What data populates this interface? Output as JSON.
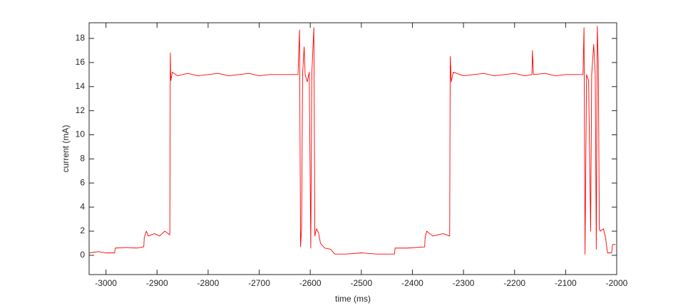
{
  "chart_data": {
    "type": "line",
    "xlabel": "time (ms)",
    "ylabel": "current (mA)",
    "color": "#ff0000",
    "xlim": [
      -3033,
      -2000
    ],
    "ylim": [
      -1.6,
      19.3
    ],
    "xticks": [
      -3000,
      -2900,
      -2800,
      -2700,
      -2600,
      -2500,
      -2400,
      -2300,
      -2200,
      -2100,
      -2000
    ],
    "yticks": [
      0,
      2,
      4,
      6,
      8,
      10,
      12,
      14,
      16,
      18
    ],
    "grid": false,
    "x": [
      -3033,
      -3015,
      -3000,
      -2983,
      -2982,
      -2960,
      -2940,
      -2926,
      -2925,
      -2921,
      -2917,
      -2905,
      -2895,
      -2885,
      -2875,
      -2874,
      -2873,
      -2870,
      -2860,
      -2840,
      -2820,
      -2800,
      -2780,
      -2760,
      -2740,
      -2720,
      -2700,
      -2680,
      -2660,
      -2640,
      -2624,
      -2621,
      -2619,
      -2617,
      -2615,
      -2612,
      -2610,
      -2606,
      -2602,
      -2599,
      -2597,
      -2593,
      -2591,
      -2588,
      -2584,
      -2580,
      -2572,
      -2560,
      -2552,
      -2530,
      -2500,
      -2470,
      -2435,
      -2434,
      -2410,
      -2376,
      -2375,
      -2372,
      -2360,
      -2340,
      -2327,
      -2326,
      -2324,
      -2320,
      -2300,
      -2280,
      -2260,
      -2240,
      -2220,
      -2200,
      -2180,
      -2166,
      -2165,
      -2163,
      -2140,
      -2120,
      -2100,
      -2080,
      -2066,
      -2064,
      -2062,
      -2059,
      -2055,
      -2051,
      -2049,
      -2045,
      -2042,
      -2040,
      -2038,
      -2036,
      -2034,
      -2032,
      -2026,
      -2022,
      -2018,
      -2010,
      -2008,
      -2002
    ],
    "values": [
      0.2,
      0.3,
      0.2,
      0.2,
      0.6,
      0.65,
      0.6,
      0.7,
      1.5,
      2.0,
      1.6,
      1.8,
      1.6,
      2.0,
      1.7,
      16.8,
      14.5,
      15.2,
      14.9,
      15.1,
      14.9,
      15.0,
      15.1,
      14.9,
      15.0,
      15.1,
      14.9,
      15.0,
      15.0,
      15.0,
      15.0,
      18.7,
      0.7,
      2.2,
      15.0,
      17.3,
      15.0,
      14.4,
      15.2,
      0.6,
      15.0,
      18.9,
      1.6,
      2.2,
      1.9,
      1.0,
      0.6,
      0.5,
      0.1,
      0.1,
      0.2,
      0.1,
      0.1,
      0.6,
      0.6,
      0.7,
      1.5,
      2.0,
      1.6,
      1.8,
      1.6,
      16.5,
      14.4,
      15.2,
      14.9,
      15.0,
      15.1,
      14.9,
      15.0,
      15.1,
      14.9,
      15.0,
      17.0,
      15.0,
      15.1,
      14.9,
      15.0,
      15.0,
      15.0,
      18.9,
      0.1,
      15.0,
      14.5,
      2.0,
      15.0,
      17.5,
      15.0,
      0.5,
      19.0,
      16.0,
      2.2,
      2.0,
      2.2,
      1.5,
      0.2,
      0.2,
      0.9,
      0.9
    ]
  }
}
